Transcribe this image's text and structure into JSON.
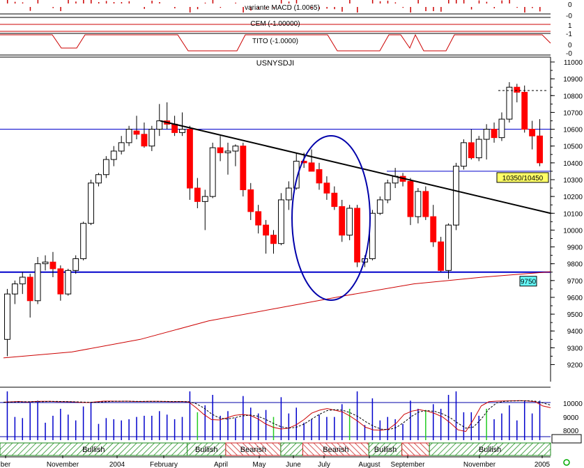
{
  "panels": {
    "macd": {
      "title": "variante MACD (1.0065)",
      "axis_labels": [
        "0",
        "-0"
      ]
    },
    "cem": {
      "title": "CEM (-1.00000)",
      "axis_labels": [
        "1",
        "-1"
      ]
    },
    "tito": {
      "title": "TITO (-1.0000)",
      "axis_labels": [
        "0",
        "-0"
      ]
    },
    "indicator": {
      "axis_labels": [
        "10000",
        "9000",
        "8000"
      ]
    }
  },
  "colors": {
    "up": "#ffffff",
    "down": "#ff0000",
    "trendline": "#000000",
    "support": "#0000cc",
    "ma": "#cc0000",
    "ellipse": "#0000aa",
    "bullish_fill": "#1a8a1a",
    "bearish_fill": "#cc2222",
    "callout_yellow": "#ffff66",
    "callout_cyan": "#66ffff"
  },
  "chart_data": {
    "type": "candlestick",
    "title": "USNYSDJI",
    "ylim": [
      9150,
      11050
    ],
    "y_ticks": [
      9200,
      9300,
      9400,
      9500,
      9600,
      9700,
      9800,
      9900,
      10000,
      10100,
      10200,
      10300,
      10400,
      10500,
      10600,
      10700,
      10800,
      10900,
      11000
    ],
    "x_labels": [
      "ber",
      "November",
      "2004",
      "February",
      "April",
      "May",
      "June",
      "July",
      "August",
      "September",
      "November",
      "2005"
    ],
    "candles": [
      {
        "o": 9350,
        "h": 9650,
        "l": 9250,
        "c": 9620
      },
      {
        "o": 9620,
        "h": 9700,
        "l": 9560,
        "c": 9680
      },
      {
        "o": 9680,
        "h": 9750,
        "l": 9620,
        "c": 9720
      },
      {
        "o": 9720,
        "h": 9740,
        "l": 9480,
        "c": 9580
      },
      {
        "o": 9580,
        "h": 9840,
        "l": 9560,
        "c": 9800
      },
      {
        "o": 9800,
        "h": 9850,
        "l": 9760,
        "c": 9810
      },
      {
        "o": 9810,
        "h": 9870,
        "l": 9720,
        "c": 9770
      },
      {
        "o": 9770,
        "h": 9790,
        "l": 9580,
        "c": 9620
      },
      {
        "o": 9620,
        "h": 9770,
        "l": 9610,
        "c": 9760
      },
      {
        "o": 9760,
        "h": 9850,
        "l": 9740,
        "c": 9830
      },
      {
        "o": 9830,
        "h": 10050,
        "l": 9820,
        "c": 10040
      },
      {
        "o": 10040,
        "h": 10300,
        "l": 10030,
        "c": 10280
      },
      {
        "o": 10280,
        "h": 10340,
        "l": 10260,
        "c": 10330
      },
      {
        "o": 10330,
        "h": 10440,
        "l": 10310,
        "c": 10420
      },
      {
        "o": 10420,
        "h": 10500,
        "l": 10380,
        "c": 10470
      },
      {
        "o": 10470,
        "h": 10560,
        "l": 10450,
        "c": 10520
      },
      {
        "o": 10520,
        "h": 10620,
        "l": 10500,
        "c": 10600
      },
      {
        "o": 10590,
        "h": 10680,
        "l": 10540,
        "c": 10570
      },
      {
        "o": 10570,
        "h": 10640,
        "l": 10490,
        "c": 10500
      },
      {
        "o": 10500,
        "h": 10620,
        "l": 10470,
        "c": 10600
      },
      {
        "o": 10600,
        "h": 10750,
        "l": 10560,
        "c": 10650
      },
      {
        "o": 10650,
        "h": 10760,
        "l": 10600,
        "c": 10630
      },
      {
        "o": 10630,
        "h": 10680,
        "l": 10560,
        "c": 10580
      },
      {
        "o": 10580,
        "h": 10700,
        "l": 10560,
        "c": 10600
      },
      {
        "o": 10600,
        "h": 10620,
        "l": 10180,
        "c": 10250
      },
      {
        "o": 10250,
        "h": 10310,
        "l": 10130,
        "c": 10170
      },
      {
        "o": 10170,
        "h": 10240,
        "l": 10000,
        "c": 10200
      },
      {
        "o": 10200,
        "h": 10520,
        "l": 10190,
        "c": 10490
      },
      {
        "o": 10490,
        "h": 10560,
        "l": 10410,
        "c": 10460
      },
      {
        "o": 10460,
        "h": 10520,
        "l": 10330,
        "c": 10470
      },
      {
        "o": 10470,
        "h": 10510,
        "l": 10380,
        "c": 10500
      },
      {
        "o": 10500,
        "h": 10520,
        "l": 10200,
        "c": 10240
      },
      {
        "o": 10240,
        "h": 10280,
        "l": 10060,
        "c": 10110
      },
      {
        "o": 10110,
        "h": 10150,
        "l": 9980,
        "c": 10030
      },
      {
        "o": 10030,
        "h": 10060,
        "l": 9860,
        "c": 9970
      },
      {
        "o": 9970,
        "h": 10000,
        "l": 9860,
        "c": 9920
      },
      {
        "o": 9920,
        "h": 10220,
        "l": 9910,
        "c": 10180
      },
      {
        "o": 10180,
        "h": 10290,
        "l": 10120,
        "c": 10250
      },
      {
        "o": 10250,
        "h": 10460,
        "l": 10240,
        "c": 10410
      },
      {
        "o": 10410,
        "h": 10460,
        "l": 10370,
        "c": 10400
      },
      {
        "o": 10400,
        "h": 10480,
        "l": 10360,
        "c": 10350
      },
      {
        "o": 10360,
        "h": 10400,
        "l": 10240,
        "c": 10280
      },
      {
        "o": 10280,
        "h": 10320,
        "l": 10180,
        "c": 10220
      },
      {
        "o": 10220,
        "h": 10260,
        "l": 10120,
        "c": 10140
      },
      {
        "o": 10140,
        "h": 10180,
        "l": 9930,
        "c": 9970
      },
      {
        "o": 9970,
        "h": 10150,
        "l": 9940,
        "c": 10130
      },
      {
        "o": 10130,
        "h": 10150,
        "l": 9780,
        "c": 9810
      },
      {
        "o": 9810,
        "h": 9850,
        "l": 9780,
        "c": 9830
      },
      {
        "o": 9830,
        "h": 10120,
        "l": 9820,
        "c": 10100
      },
      {
        "o": 10100,
        "h": 10200,
        "l": 10090,
        "c": 10180
      },
      {
        "o": 10180,
        "h": 10300,
        "l": 10160,
        "c": 10280
      },
      {
        "o": 10280,
        "h": 10370,
        "l": 10250,
        "c": 10320
      },
      {
        "o": 10320,
        "h": 10340,
        "l": 10260,
        "c": 10290
      },
      {
        "o": 10290,
        "h": 10310,
        "l": 10030,
        "c": 10080
      },
      {
        "o": 10080,
        "h": 10250,
        "l": 10040,
        "c": 10230
      },
      {
        "o": 10230,
        "h": 10260,
        "l": 10060,
        "c": 10080
      },
      {
        "o": 10080,
        "h": 10150,
        "l": 9900,
        "c": 9930
      },
      {
        "o": 9930,
        "h": 9960,
        "l": 9750,
        "c": 9760
      },
      {
        "o": 9760,
        "h": 10040,
        "l": 9710,
        "c": 10030
      },
      {
        "o": 10030,
        "h": 10400,
        "l": 10000,
        "c": 10380
      },
      {
        "o": 10380,
        "h": 10540,
        "l": 10360,
        "c": 10520
      },
      {
        "o": 10520,
        "h": 10600,
        "l": 10420,
        "c": 10430
      },
      {
        "o": 10430,
        "h": 10560,
        "l": 10410,
        "c": 10540
      },
      {
        "o": 10540,
        "h": 10630,
        "l": 10420,
        "c": 10600
      },
      {
        "o": 10600,
        "h": 10640,
        "l": 10520,
        "c": 10550
      },
      {
        "o": 10550,
        "h": 10700,
        "l": 10530,
        "c": 10660
      },
      {
        "o": 10660,
        "h": 10880,
        "l": 10640,
        "c": 10850
      },
      {
        "o": 10850,
        "h": 10870,
        "l": 10760,
        "c": 10820
      },
      {
        "o": 10820,
        "h": 10860,
        "l": 10580,
        "c": 10600
      },
      {
        "o": 10600,
        "h": 10650,
        "l": 10480,
        "c": 10560
      },
      {
        "o": 10560,
        "h": 10660,
        "l": 10380,
        "c": 10400
      }
    ],
    "moving_average": [
      9240,
      9275,
      9350,
      9460,
      9535,
      9610,
      9680,
      9720,
      9752
    ],
    "annotations": [
      {
        "text": "10350/10450",
        "value": 10350
      },
      {
        "text": "9750",
        "value": 9750
      }
    ],
    "support_level": 9750,
    "resistance_level": 10600,
    "target_level": 10350,
    "trend_start": 10650,
    "trend_end": 10100,
    "indicator": {
      "k": [
        10020,
        10040,
        10060,
        10030,
        10060,
        10070,
        10070,
        10050,
        10050,
        10040,
        10010,
        10000,
        10040,
        10080,
        10080,
        10070,
        10080,
        10060,
        10060,
        10070,
        10070,
        10060,
        10050,
        10060,
        10040,
        9700,
        9300,
        9000,
        8980,
        9100,
        9250,
        9300,
        9250,
        9050,
        8750,
        8550,
        8450,
        8500,
        8700,
        9000,
        9380,
        9550,
        9650,
        9550,
        9450,
        9200,
        8900,
        8550,
        8400,
        8380,
        8450,
        8800,
        9300,
        9500,
        9580,
        9500,
        9350,
        9150,
        8800,
        8400,
        8300,
        9000,
        9800,
        10050,
        10080,
        10090,
        10100,
        10110,
        10090,
        10050,
        9800,
        9700
      ]
    },
    "regimes": [
      {
        "label": "Bullish",
        "kind": "bullish",
        "from": 0,
        "to": 0.34
      },
      {
        "label": "Bullish",
        "kind": "bullish",
        "from": 0.34,
        "to": 0.41
      },
      {
        "label": "Bearish",
        "kind": "bearish",
        "from": 0.41,
        "to": 0.51
      },
      {
        "label": "",
        "kind": "bullish",
        "from": 0.51,
        "to": 0.55
      },
      {
        "label": "Bearish",
        "kind": "bearish",
        "from": 0.55,
        "to": 0.67
      },
      {
        "label": "Bullish",
        "kind": "bullish",
        "from": 0.67,
        "to": 0.73
      },
      {
        "label": "",
        "kind": "bearish",
        "from": 0.73,
        "to": 0.78
      },
      {
        "label": "Bullish",
        "kind": "bullish",
        "from": 0.78,
        "to": 1.0
      }
    ]
  }
}
